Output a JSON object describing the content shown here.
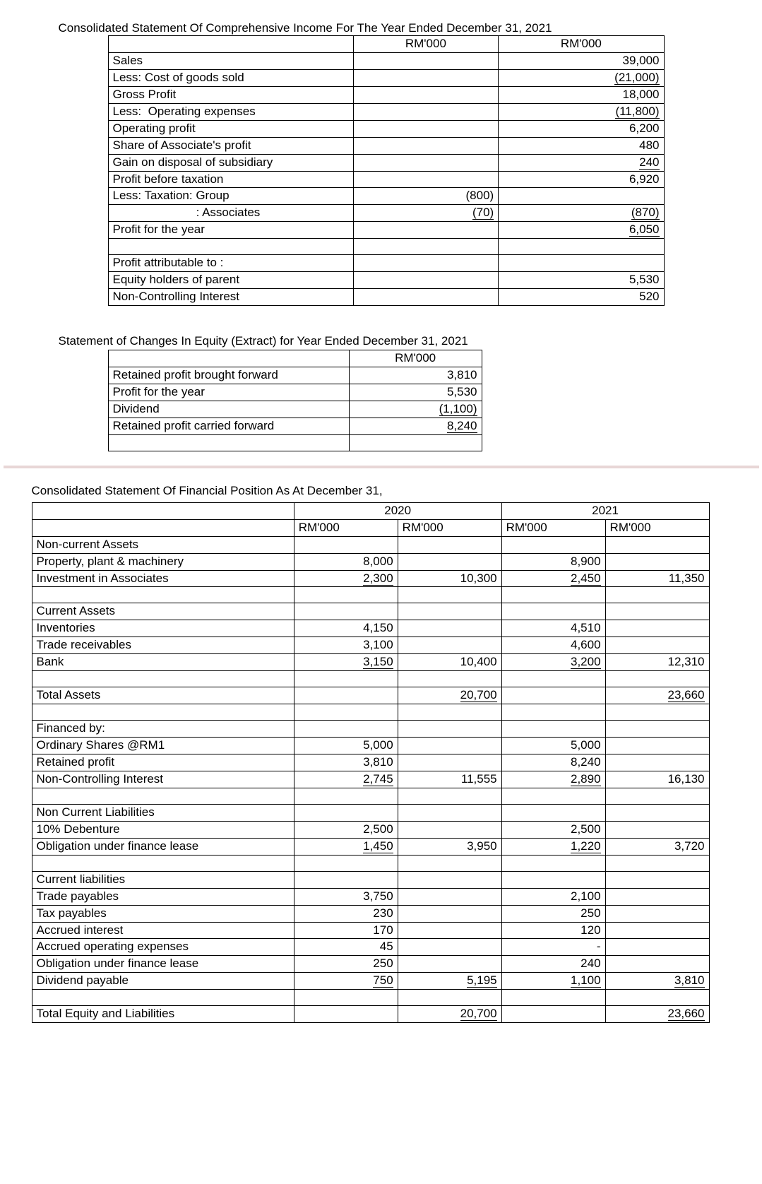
{
  "title1": "Consolidated Statement Of Comprehensive Income For The Year Ended December 31, 2021",
  "title2": "Statement of Changes In Equity (Extract) for Year Ended December 31, 2021",
  "title3": "Consolidated Statement Of Financial Position As At December 31,",
  "currency": "RM'000",
  "t1": {
    "rows": [
      {
        "label": "Sales",
        "c1": "",
        "c2": "39,000"
      },
      {
        "label": "Less: Cost of goods sold",
        "c1": "",
        "c2": "(21,000)",
        "u2": true
      },
      {
        "label": "Gross Profit",
        "c1": "",
        "c2": "18,000"
      },
      {
        "label": "Less:  Operating expenses",
        "c1": "",
        "c2": "(11,800)",
        "u2": true
      },
      {
        "label": "Operating profit",
        "c1": "",
        "c2": "6,200"
      },
      {
        "label": "Share of Associate's profit",
        "c1": "",
        "c2": "480"
      },
      {
        "label": "Gain on disposal of subsidiary",
        "c1": "",
        "c2": "240",
        "u2": true
      },
      {
        "label": "Profit before taxation",
        "c1": "",
        "c2": "6,920"
      },
      {
        "label": "Less: Taxation: Group",
        "c1": "(800)",
        "c2": ""
      },
      {
        "label": "                         : Associates",
        "c1": "(70)",
        "c2": "(870)",
        "u1": true,
        "u2": true
      },
      {
        "label": "Profit for the year",
        "c1": "",
        "c2": "6,050",
        "u2": true
      },
      {
        "label": "",
        "c1": "",
        "c2": ""
      },
      {
        "label": "Profit attributable to :",
        "c1": "",
        "c2": ""
      },
      {
        "label": "Equity holders of parent",
        "c1": "",
        "c2": "5,530"
      },
      {
        "label": "Non-Controlling Interest",
        "c1": "",
        "c2": "520"
      }
    ]
  },
  "t2": {
    "rows": [
      {
        "label": "Retained profit brought forward",
        "c1": "3,810"
      },
      {
        "label": "Profit for the year",
        "c1": "5,530"
      },
      {
        "label": "Dividend",
        "c1": "(1,100)",
        "u1": true
      },
      {
        "label": "Retained profit carried forward",
        "c1": "8,240",
        "u1": true
      },
      {
        "label": "",
        "c1": ""
      }
    ]
  },
  "t3": {
    "year1": "2020",
    "year2": "2021",
    "rows": [
      {
        "label": "Non-current Assets"
      },
      {
        "label": "Property, plant & machinery",
        "a": "8,000",
        "c": "8,900"
      },
      {
        "label": "Investment in Associates",
        "a": "2,300",
        "b": "10,300",
        "c": "2,450",
        "d": "11,350",
        "ua": true,
        "uc": true
      },
      {
        "label": ""
      },
      {
        "label": "Current Assets"
      },
      {
        "label": "Inventories",
        "a": "4,150",
        "c": "4,510"
      },
      {
        "label": "Trade receivables",
        "a": "3,100",
        "c": "4,600"
      },
      {
        "label": "Bank",
        "a": "3,150",
        "b": "10,400",
        "c": "3,200",
        "d": "12,310",
        "ua": true,
        "uc": true
      },
      {
        "label": ""
      },
      {
        "label": "Total Assets",
        "b": "20,700",
        "d": "23,660",
        "ub": true,
        "ud": true
      },
      {
        "label": ""
      },
      {
        "label": "Financed by:"
      },
      {
        "label": "Ordinary Shares  @RM1",
        "a": "5,000",
        "c": "5,000"
      },
      {
        "label": "Retained profit",
        "a": "3,810",
        "c": "8,240"
      },
      {
        "label": "Non-Controlling Interest",
        "a": "2,745",
        "b": "11,555",
        "c": "2,890",
        "d": "16,130",
        "ua": true,
        "uc": true
      },
      {
        "label": ""
      },
      {
        "label": "Non Current Liabilities"
      },
      {
        "label": "10% Debenture",
        "a": "2,500",
        "c": "2,500"
      },
      {
        "label": "Obligation under finance lease",
        "a": "1,450",
        "b": "3,950",
        "c": "1,220",
        "d": "3,720",
        "ua": true,
        "uc": true
      },
      {
        "label": ""
      },
      {
        "label": "Current liabilities"
      },
      {
        "label": "Trade payables",
        "a": "3,750",
        "c": "2,100"
      },
      {
        "label": "Tax payables",
        "a": "230",
        "c": "250"
      },
      {
        "label": "Accrued interest",
        "a": "170",
        "c": "120"
      },
      {
        "label": "Accrued operating expenses",
        "a": "45",
        "c": "-"
      },
      {
        "label": "Obligation under finance lease",
        "a": "250",
        "c": "240"
      },
      {
        "label": "Dividend payable",
        "a": "750",
        "b": "5,195",
        "c": "1,100",
        "d": "3,810",
        "ua": true,
        "uc": true,
        "ub": true,
        "ud": true
      },
      {
        "label": ""
      },
      {
        "label": "Total Equity and Liabilities",
        "b": "20,700",
        "d": "23,660",
        "ub": true,
        "ud": true
      }
    ]
  }
}
